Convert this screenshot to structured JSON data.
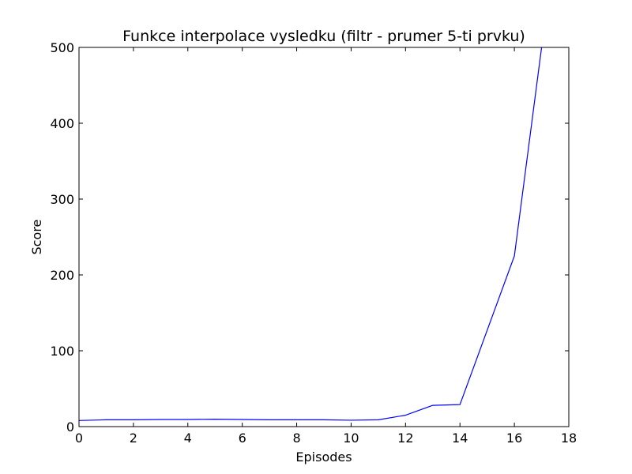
{
  "chart_data": {
    "type": "line",
    "title": "Funkce interpolace vysledku (filtr - prumer 5-ti prvku)",
    "xlabel": "Episodes",
    "ylabel": "Score",
    "xlim": [
      0,
      18
    ],
    "ylim": [
      0,
      500
    ],
    "xticks": [
      0,
      2,
      4,
      6,
      8,
      10,
      12,
      14,
      16,
      18
    ],
    "yticks": [
      0,
      100,
      200,
      300,
      400,
      500
    ],
    "grid": false,
    "series": [
      {
        "color": "#0000ff",
        "x": [
          0,
          1,
          2,
          3,
          4,
          5,
          6,
          7,
          8,
          9,
          10,
          11,
          12,
          13,
          14,
          16,
          17,
          17.2
        ],
        "y": [
          8,
          9,
          9,
          9.4,
          9.4,
          9.8,
          9.4,
          9,
          9,
          9,
          8.4,
          9,
          15,
          28,
          29,
          225,
          500,
          560
        ]
      }
    ]
  }
}
